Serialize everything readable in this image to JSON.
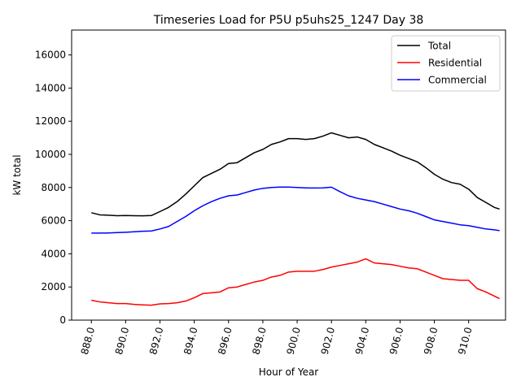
{
  "chart_data": {
    "type": "line",
    "title": "Timeseries Load for P5U p5uhs25_1247  Day 38",
    "xlabel": "Hour of Year",
    "ylabel": "kW total",
    "xlim": [
      886.85,
      912.15
    ],
    "ylim": [
      0,
      17500
    ],
    "xticks": [
      888,
      890,
      892,
      894,
      896,
      898,
      900,
      902,
      904,
      906,
      908,
      910
    ],
    "xtick_labels": [
      "888.0",
      "890.0",
      "892.0",
      "894.0",
      "896.0",
      "898.0",
      "900.0",
      "902.0",
      "904.0",
      "906.0",
      "908.0",
      "910.0"
    ],
    "yticks": [
      0,
      2000,
      4000,
      6000,
      8000,
      10000,
      12000,
      14000,
      16000
    ],
    "ytick_labels": [
      "0",
      "2000",
      "4000",
      "6000",
      "8000",
      "10000",
      "12000",
      "14000",
      "16000"
    ],
    "legend_position": "top-right",
    "x": [
      888.0,
      888.5,
      889.0,
      889.5,
      890.0,
      890.5,
      891.0,
      891.5,
      892.0,
      892.5,
      893.0,
      893.5,
      894.0,
      894.5,
      895.0,
      895.5,
      896.0,
      896.5,
      897.0,
      897.5,
      898.0,
      898.5,
      899.0,
      899.5,
      900.0,
      900.5,
      901.0,
      901.5,
      902.0,
      902.5,
      903.0,
      903.5,
      904.0,
      904.5,
      905.0,
      905.5,
      906.0,
      906.5,
      907.0,
      907.5,
      908.0,
      908.5,
      909.0,
      909.5,
      910.0,
      910.5,
      911.0,
      911.5,
      911.8
    ],
    "series": [
      {
        "name": "Total",
        "color": "#000000",
        "values": [
          6480,
          6350,
          6330,
          6300,
          6310,
          6300,
          6290,
          6310,
          6550,
          6800,
          7150,
          7600,
          8100,
          8600,
          8850,
          9100,
          9450,
          9500,
          9800,
          10100,
          10300,
          10600,
          10750,
          10950,
          10950,
          10900,
          10950,
          11100,
          11300,
          11150,
          11000,
          11050,
          10900,
          10600,
          10400,
          10200,
          9950,
          9750,
          9550,
          9200,
          8800,
          8500,
          8300,
          8200,
          7900,
          7400,
          7100,
          6800,
          6700
        ]
      },
      {
        "name": "Residential",
        "color": "#ff0000",
        "values": [
          1200,
          1100,
          1050,
          1000,
          1000,
          950,
          920,
          900,
          980,
          1000,
          1050,
          1150,
          1350,
          1600,
          1650,
          1700,
          1950,
          2000,
          2150,
          2300,
          2400,
          2600,
          2700,
          2900,
          2950,
          2950,
          2950,
          3050,
          3200,
          3300,
          3400,
          3500,
          3700,
          3450,
          3400,
          3350,
          3250,
          3150,
          3100,
          2900,
          2700,
          2500,
          2450,
          2400,
          2400,
          1900,
          1700,
          1450,
          1300
        ]
      },
      {
        "name": "Commercial",
        "color": "#0000ff",
        "values": [
          5250,
          5250,
          5260,
          5280,
          5300,
          5330,
          5360,
          5380,
          5500,
          5650,
          5950,
          6250,
          6600,
          6900,
          7150,
          7350,
          7500,
          7550,
          7700,
          7850,
          7950,
          8000,
          8030,
          8030,
          8000,
          7980,
          7970,
          7980,
          8020,
          7750,
          7500,
          7350,
          7250,
          7150,
          7000,
          6850,
          6700,
          6600,
          6450,
          6250,
          6050,
          5950,
          5850,
          5750,
          5700,
          5600,
          5500,
          5450,
          5400
        ]
      }
    ]
  }
}
